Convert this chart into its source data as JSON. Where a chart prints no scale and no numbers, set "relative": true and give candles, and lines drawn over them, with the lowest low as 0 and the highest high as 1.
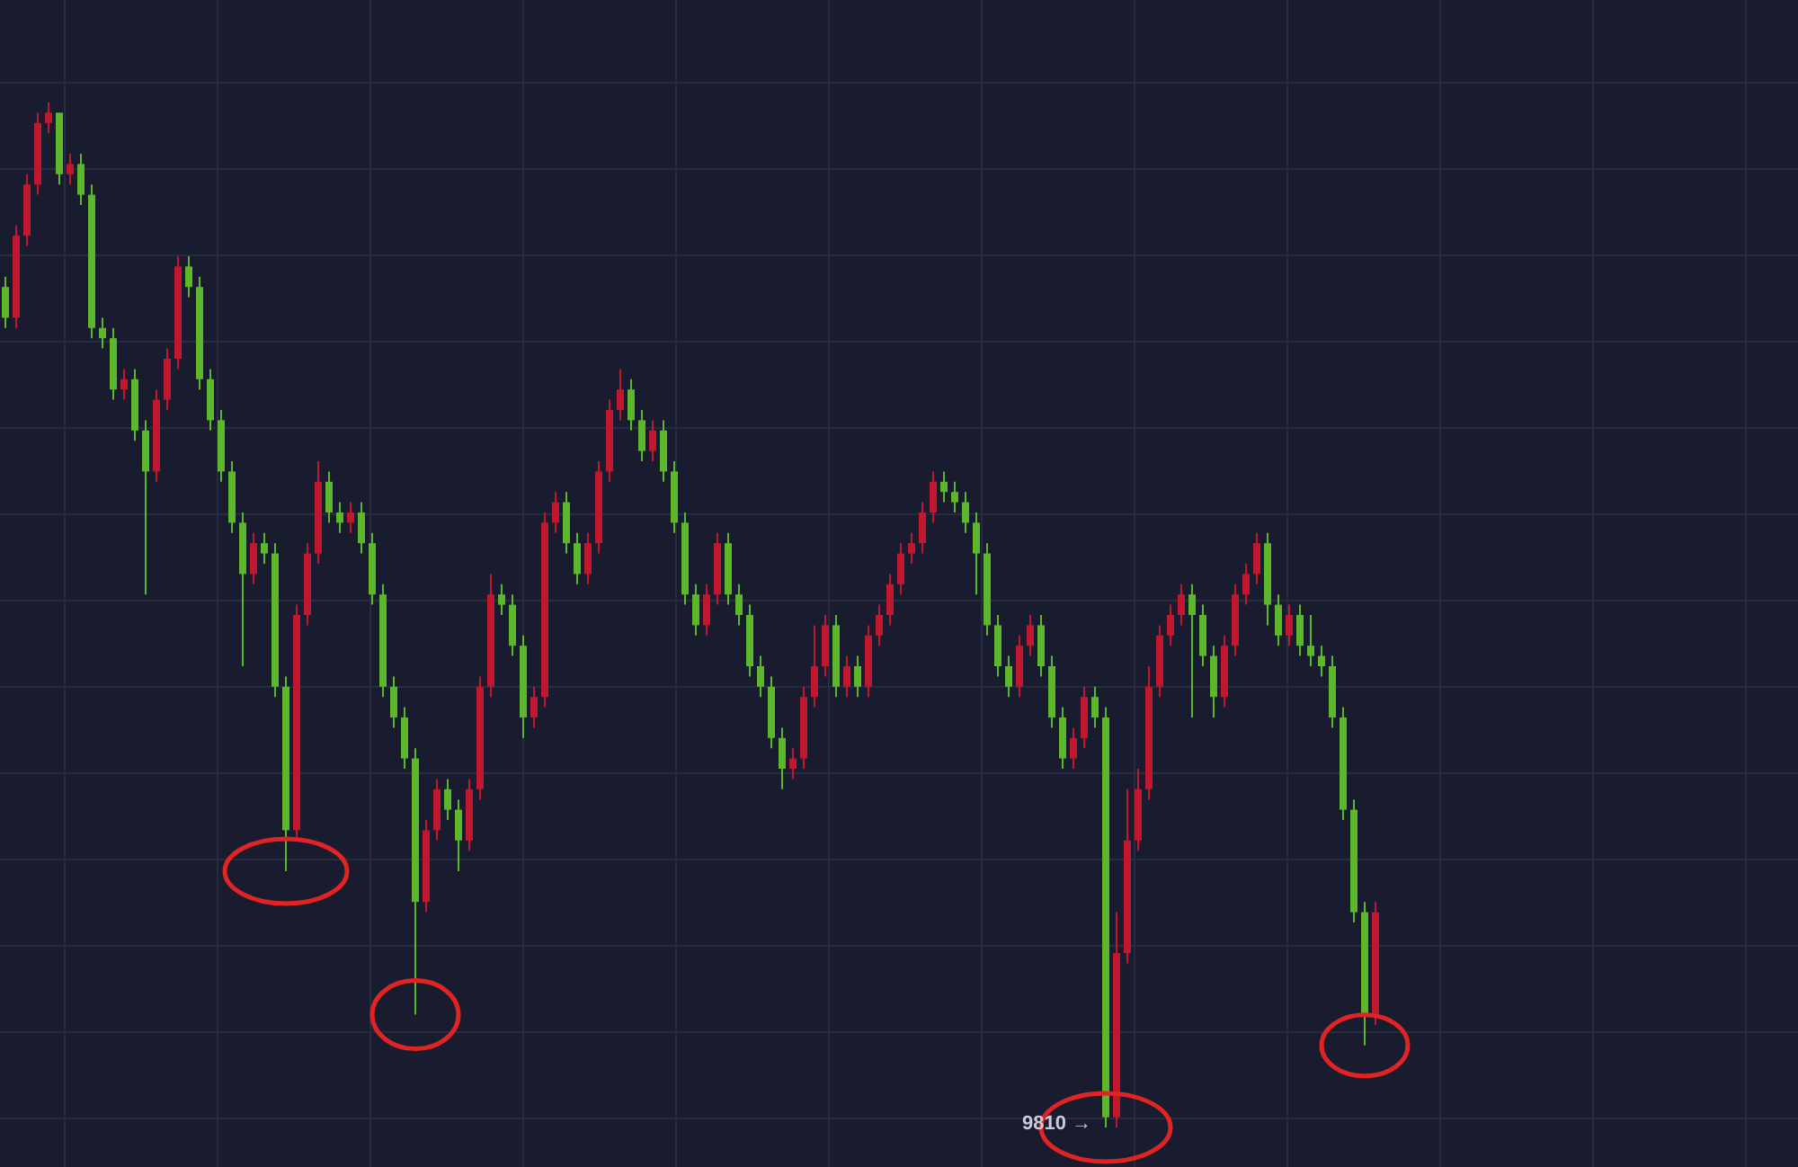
{
  "chart_data": {
    "type": "candlestick",
    "relative": true,
    "grid": true,
    "categories": [
      null,
      null,
      null,
      null,
      null,
      null,
      null,
      null,
      null,
      null,
      null,
      null,
      null,
      null,
      null,
      null,
      null,
      null,
      null,
      null,
      null,
      null,
      null,
      null,
      null,
      null,
      null,
      null,
      null,
      null,
      null,
      null,
      null,
      null,
      null,
      null,
      null,
      null,
      null,
      null,
      null,
      null,
      null,
      null,
      null,
      null,
      null,
      null,
      null,
      null,
      null,
      null,
      null,
      null,
      null,
      null,
      null,
      null,
      null,
      null,
      null,
      null,
      null,
      null,
      null,
      null,
      null,
      null,
      null,
      null,
      null,
      null,
      null,
      null,
      null,
      null,
      null,
      null,
      null,
      null,
      null,
      null,
      null,
      null,
      null,
      null,
      null,
      null,
      null,
      null,
      null,
      null,
      null,
      null,
      null,
      null,
      null,
      null,
      null,
      null,
      null,
      null,
      null,
      null,
      null,
      null,
      null,
      null,
      null,
      null,
      null,
      null,
      null,
      null,
      null,
      null,
      null,
      null,
      null,
      null,
      null,
      null,
      null,
      null,
      null,
      null,
      null,
      null
    ],
    "ohlc": [
      [
        0.82,
        0.83,
        0.78,
        0.79
      ],
      [
        0.79,
        0.88,
        0.78,
        0.87
      ],
      [
        0.87,
        0.93,
        0.86,
        0.92
      ],
      [
        0.92,
        0.99,
        0.91,
        0.98
      ],
      [
        0.98,
        1,
        0.97,
        0.99
      ],
      [
        0.99,
        0.99,
        0.92,
        0.93
      ],
      [
        0.93,
        0.95,
        0.92,
        0.94
      ],
      [
        0.94,
        0.95,
        0.9,
        0.91
      ],
      [
        0.91,
        0.92,
        0.77,
        0.78
      ],
      [
        0.78,
        0.79,
        0.76,
        0.77
      ],
      [
        0.77,
        0.78,
        0.71,
        0.72
      ],
      [
        0.72,
        0.74,
        0.71,
        0.73
      ],
      [
        0.73,
        0.74,
        0.67,
        0.68
      ],
      [
        0.68,
        0.69,
        0.52,
        0.64
      ],
      [
        0.64,
        0.72,
        0.63,
        0.71
      ],
      [
        0.71,
        0.76,
        0.7,
        0.75
      ],
      [
        0.75,
        0.85,
        0.74,
        0.84
      ],
      [
        0.84,
        0.85,
        0.81,
        0.82
      ],
      [
        0.82,
        0.83,
        0.72,
        0.73
      ],
      [
        0.73,
        0.74,
        0.68,
        0.69
      ],
      [
        0.69,
        0.7,
        0.63,
        0.64
      ],
      [
        0.64,
        0.65,
        0.58,
        0.59
      ],
      [
        0.59,
        0.6,
        0.45,
        0.54
      ],
      [
        0.54,
        0.58,
        0.53,
        0.57
      ],
      [
        0.57,
        0.58,
        0.55,
        0.56
      ],
      [
        0.56,
        0.57,
        0.42,
        0.43
      ],
      [
        0.43,
        0.44,
        0.25,
        0.29
      ],
      [
        0.29,
        0.51,
        0.28,
        0.5
      ],
      [
        0.5,
        0.57,
        0.49,
        0.56
      ],
      [
        0.56,
        0.65,
        0.55,
        0.63
      ],
      [
        0.63,
        0.64,
        0.59,
        0.6
      ],
      [
        0.6,
        0.61,
        0.58,
        0.59
      ],
      [
        0.59,
        0.61,
        0.58,
        0.6
      ],
      [
        0.6,
        0.61,
        0.56,
        0.57
      ],
      [
        0.57,
        0.58,
        0.51,
        0.52
      ],
      [
        0.52,
        0.53,
        0.42,
        0.43
      ],
      [
        0.43,
        0.44,
        0.39,
        0.4
      ],
      [
        0.4,
        0.41,
        0.35,
        0.36
      ],
      [
        0.36,
        0.37,
        0.11,
        0.22
      ],
      [
        0.22,
        0.3,
        0.21,
        0.29
      ],
      [
        0.29,
        0.34,
        0.28,
        0.33
      ],
      [
        0.33,
        0.34,
        0.3,
        0.31
      ],
      [
        0.31,
        0.32,
        0.25,
        0.28
      ],
      [
        0.28,
        0.34,
        0.27,
        0.33
      ],
      [
        0.33,
        0.44,
        0.32,
        0.43
      ],
      [
        0.43,
        0.54,
        0.42,
        0.52
      ],
      [
        0.52,
        0.53,
        0.5,
        0.51
      ],
      [
        0.51,
        0.52,
        0.46,
        0.47
      ],
      [
        0.47,
        0.48,
        0.38,
        0.4
      ],
      [
        0.4,
        0.43,
        0.39,
        0.42
      ],
      [
        0.42,
        0.6,
        0.41,
        0.59
      ],
      [
        0.59,
        0.62,
        0.58,
        0.61
      ],
      [
        0.61,
        0.62,
        0.56,
        0.57
      ],
      [
        0.57,
        0.58,
        0.53,
        0.54
      ],
      [
        0.54,
        0.58,
        0.53,
        0.57
      ],
      [
        0.57,
        0.65,
        0.56,
        0.64
      ],
      [
        0.64,
        0.71,
        0.63,
        0.7
      ],
      [
        0.7,
        0.74,
        0.69,
        0.72
      ],
      [
        0.72,
        0.73,
        0.68,
        0.69
      ],
      [
        0.69,
        0.7,
        0.65,
        0.66
      ],
      [
        0.66,
        0.69,
        0.65,
        0.68
      ],
      [
        0.68,
        0.69,
        0.63,
        0.64
      ],
      [
        0.64,
        0.65,
        0.58,
        0.59
      ],
      [
        0.59,
        0.6,
        0.51,
        0.52
      ],
      [
        0.52,
        0.53,
        0.48,
        0.49
      ],
      [
        0.49,
        0.53,
        0.48,
        0.52
      ],
      [
        0.52,
        0.58,
        0.51,
        0.57
      ],
      [
        0.57,
        0.58,
        0.51,
        0.52
      ],
      [
        0.52,
        0.53,
        0.49,
        0.5
      ],
      [
        0.5,
        0.51,
        0.44,
        0.45
      ],
      [
        0.45,
        0.46,
        0.42,
        0.43
      ],
      [
        0.43,
        0.44,
        0.37,
        0.38
      ],
      [
        0.38,
        0.39,
        0.33,
        0.35
      ],
      [
        0.35,
        0.37,
        0.34,
        0.36
      ],
      [
        0.36,
        0.43,
        0.35,
        0.42
      ],
      [
        0.42,
        0.49,
        0.41,
        0.45
      ],
      [
        0.45,
        0.5,
        0.44,
        0.49
      ],
      [
        0.49,
        0.5,
        0.42,
        0.43
      ],
      [
        0.43,
        0.46,
        0.42,
        0.45
      ],
      [
        0.45,
        0.46,
        0.42,
        0.43
      ],
      [
        0.43,
        0.49,
        0.42,
        0.48
      ],
      [
        0.48,
        0.51,
        0.47,
        0.5
      ],
      [
        0.5,
        0.54,
        0.49,
        0.53
      ],
      [
        0.53,
        0.57,
        0.52,
        0.56
      ],
      [
        0.56,
        0.58,
        0.55,
        0.57
      ],
      [
        0.57,
        0.61,
        0.56,
        0.6
      ],
      [
        0.6,
        0.64,
        0.59,
        0.63
      ],
      [
        0.63,
        0.64,
        0.61,
        0.62
      ],
      [
        0.62,
        0.63,
        0.6,
        0.61
      ],
      [
        0.61,
        0.62,
        0.58,
        0.59
      ],
      [
        0.59,
        0.6,
        0.52,
        0.56
      ],
      [
        0.56,
        0.57,
        0.48,
        0.49
      ],
      [
        0.49,
        0.5,
        0.44,
        0.45
      ],
      [
        0.45,
        0.46,
        0.42,
        0.43
      ],
      [
        0.43,
        0.48,
        0.42,
        0.47
      ],
      [
        0.47,
        0.5,
        0.46,
        0.49
      ],
      [
        0.49,
        0.5,
        0.44,
        0.45
      ],
      [
        0.45,
        0.46,
        0.39,
        0.4
      ],
      [
        0.4,
        0.41,
        0.35,
        0.36
      ],
      [
        0.36,
        0.39,
        0.35,
        0.38
      ],
      [
        0.38,
        0.43,
        0.37,
        0.42
      ],
      [
        0.42,
        0.43,
        0.39,
        0.4
      ],
      [
        0.4,
        0.41,
        0,
        0.01
      ],
      [
        0.01,
        0.21,
        0,
        0.17
      ],
      [
        0.17,
        0.33,
        0.16,
        0.28
      ],
      [
        0.28,
        0.35,
        0.27,
        0.33
      ],
      [
        0.33,
        0.45,
        0.32,
        0.43
      ],
      [
        0.43,
        0.49,
        0.42,
        0.48
      ],
      [
        0.48,
        0.51,
        0.47,
        0.5
      ],
      [
        0.5,
        0.53,
        0.49,
        0.52
      ],
      [
        0.52,
        0.53,
        0.4,
        0.5
      ],
      [
        0.5,
        0.51,
        0.45,
        0.46
      ],
      [
        0.46,
        0.47,
        0.4,
        0.42
      ],
      [
        0.42,
        0.48,
        0.41,
        0.47
      ],
      [
        0.47,
        0.53,
        0.46,
        0.52
      ],
      [
        0.52,
        0.55,
        0.51,
        0.54
      ],
      [
        0.54,
        0.58,
        0.53,
        0.57
      ],
      [
        0.57,
        0.58,
        0.49,
        0.51
      ],
      [
        0.51,
        0.52,
        0.47,
        0.48
      ],
      [
        0.48,
        0.51,
        0.47,
        0.5
      ],
      [
        0.5,
        0.51,
        0.46,
        0.47
      ],
      [
        0.47,
        0.5,
        0.45,
        0.46
      ],
      [
        0.46,
        0.47,
        0.44,
        0.45
      ],
      [
        0.45,
        0.46,
        0.39,
        0.4
      ],
      [
        0.4,
        0.41,
        0.3,
        0.31
      ],
      [
        0.31,
        0.32,
        0.2,
        0.21
      ],
      [
        0.21,
        0.22,
        0.08,
        0.11
      ],
      [
        0.11,
        0.22,
        0.1,
        0.21
      ]
    ],
    "colors": [
      "#5cb82a",
      "#c2182f",
      "#c2182f",
      "#c2182f",
      "#c2182f",
      "#5cb82a",
      "#c2182f",
      "#5cb82a",
      "#5cb82a",
      "#5cb82a",
      "#5cb82a",
      "#c2182f",
      "#5cb82a",
      "#5cb82a",
      "#c2182f",
      "#c2182f",
      "#c2182f",
      "#5cb82a",
      "#5cb82a",
      "#5cb82a",
      "#5cb82a",
      "#5cb82a",
      "#5cb82a",
      "#c2182f",
      "#5cb82a",
      "#5cb82a",
      "#5cb82a",
      "#c2182f",
      "#c2182f",
      "#c2182f",
      "#5cb82a",
      "#5cb82a",
      "#c2182f",
      "#5cb82a",
      "#5cb82a",
      "#5cb82a",
      "#5cb82a",
      "#5cb82a",
      "#5cb82a",
      "#c2182f",
      "#c2182f",
      "#5cb82a",
      "#5cb82a",
      "#c2182f",
      "#c2182f",
      "#c2182f",
      "#5cb82a",
      "#5cb82a",
      "#5cb82a",
      "#c2182f",
      "#c2182f",
      "#c2182f",
      "#5cb82a",
      "#5cb82a",
      "#c2182f",
      "#c2182f",
      "#c2182f",
      "#c2182f",
      "#5cb82a",
      "#5cb82a",
      "#c2182f",
      "#5cb82a",
      "#5cb82a",
      "#5cb82a",
      "#5cb82a",
      "#c2182f",
      "#c2182f",
      "#5cb82a",
      "#5cb82a",
      "#5cb82a",
      "#5cb82a",
      "#5cb82a",
      "#5cb82a",
      "#c2182f",
      "#c2182f",
      "#c2182f",
      "#c2182f",
      "#5cb82a",
      "#c2182f",
      "#5cb82a",
      "#c2182f",
      "#c2182f",
      "#c2182f",
      "#c2182f",
      "#c2182f",
      "#c2182f",
      "#c2182f",
      "#5cb82a",
      "#5cb82a",
      "#5cb82a",
      "#5cb82a",
      "#5cb82a",
      "#5cb82a",
      "#5cb82a",
      "#c2182f",
      "#c2182f",
      "#5cb82a",
      "#5cb82a",
      "#5cb82a",
      "#c2182f",
      "#c2182f",
      "#5cb82a",
      "#5cb82a",
      "#c2182f",
      "#c2182f",
      "#c2182f",
      "#c2182f",
      "#c2182f",
      "#c2182f",
      "#c2182f",
      "#5cb82a",
      "#5cb82a",
      "#5cb82a",
      "#c2182f",
      "#c2182f",
      "#c2182f",
      "#c2182f",
      "#5cb82a",
      "#5cb82a",
      "#c2182f",
      "#5cb82a",
      "#5cb82a",
      "#5cb82a",
      "#5cb82a",
      "#5cb82a",
      "#5cb82a",
      "#5cb82a",
      "#c2182f"
    ],
    "annotations": [
      "9810 →"
    ]
  }
}
